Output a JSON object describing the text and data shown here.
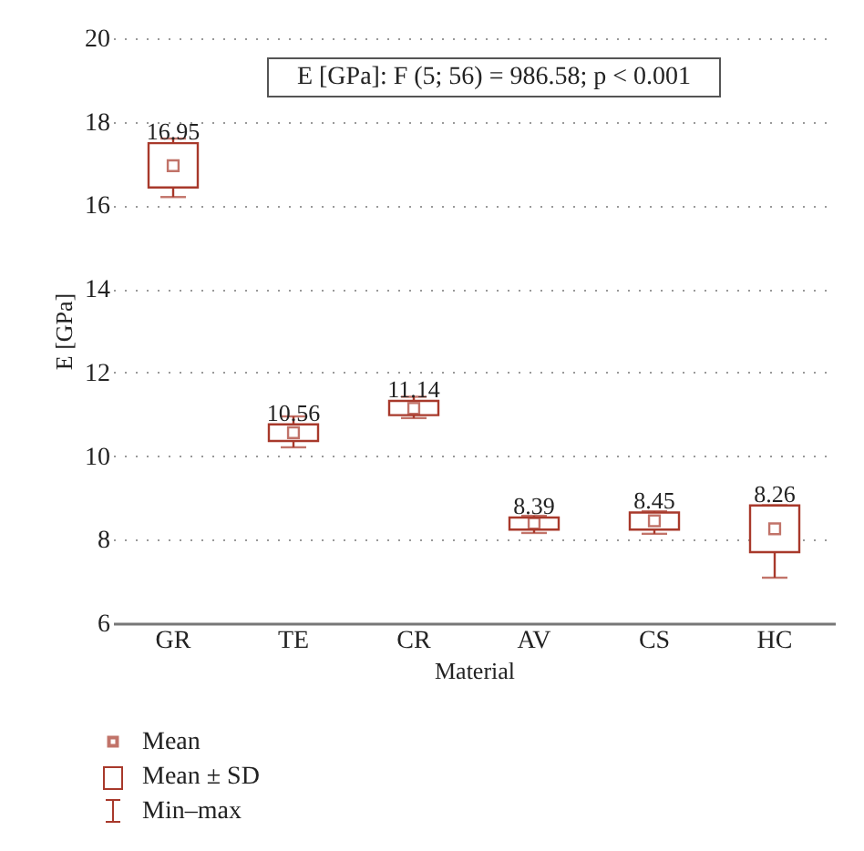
{
  "chart_data": {
    "type": "box",
    "xlabel": "Material",
    "ylabel": "E [GPa]",
    "categories": [
      "GR",
      "TE",
      "CR",
      "AV",
      "CS",
      "HC"
    ],
    "series": [
      {
        "color": "#a8392b",
        "boxes": [
          {
            "low": 16.2,
            "q1": 16.43,
            "q3": 17.49,
            "high": 17.6,
            "mean": 16.95
          },
          {
            "low": 10.21,
            "q1": 10.36,
            "q3": 10.76,
            "high": 10.95,
            "mean": 10.56
          },
          {
            "low": 10.91,
            "q1": 10.98,
            "q3": 11.32,
            "high": 11.42,
            "mean": 11.14
          },
          {
            "low": 8.16,
            "q1": 8.24,
            "q3": 8.53,
            "high": 8.57,
            "mean": 8.39
          },
          {
            "low": 8.14,
            "q1": 8.24,
            "q3": 8.65,
            "high": 8.68,
            "mean": 8.45
          },
          {
            "low": 7.09,
            "q1": 7.7,
            "q3": 8.82,
            "high": 8.82,
            "mean": 8.26
          }
        ],
        "value_labels": [
          "16.95",
          "10.56",
          "11.14",
          "8.39",
          "8.45",
          "8.26"
        ]
      }
    ],
    "ylim": [
      6,
      20
    ],
    "yticks": [
      6,
      8,
      10,
      12,
      14,
      16,
      18,
      20
    ],
    "grid": "y",
    "annotations": [
      "E [GPa]: F (5; 56) = 986.58; p < 0.001",
      "Mean",
      "Mean ± SD",
      "Min–max"
    ]
  }
}
